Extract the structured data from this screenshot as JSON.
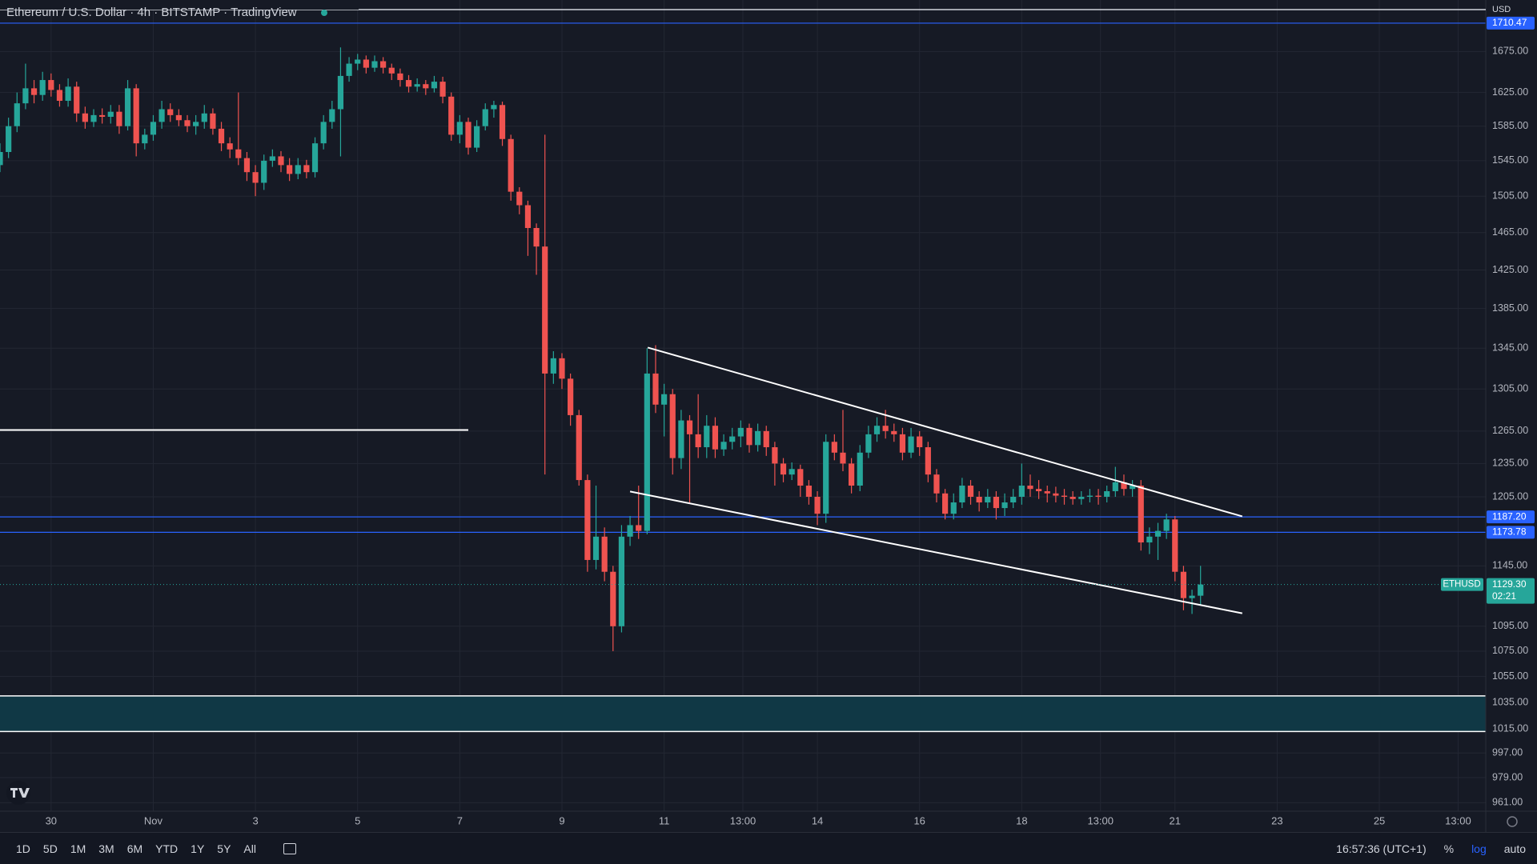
{
  "chart_data": {
    "type": "candlestick",
    "title": "Ethereum / U.S. Dollar · 4h · BITSTAMP · TradingView",
    "currency": "USD",
    "symbol": "ETHUSD",
    "last_price_label": "1129.30",
    "countdown": "02:21",
    "log": true,
    "grid": true,
    "up_color": "#26a69a",
    "down_color": "#ef5350",
    "line_color": "#2962ff",
    "xlim": [
      -24,
      674
    ],
    "ylim": [
      955,
      1740
    ],
    "xticks": [
      {
        "value": 0,
        "label": "30"
      },
      {
        "value": 48,
        "label": "Nov"
      },
      {
        "value": 96,
        "label": "3"
      },
      {
        "value": 144,
        "label": "5"
      },
      {
        "value": 192,
        "label": "7"
      },
      {
        "value": 240,
        "label": "9"
      },
      {
        "value": 288,
        "label": "11"
      },
      {
        "value": 325,
        "label": "13:00"
      },
      {
        "value": 360,
        "label": "14"
      },
      {
        "value": 408,
        "label": "16"
      },
      {
        "value": 456,
        "label": "18"
      },
      {
        "value": 493,
        "label": "13:00"
      },
      {
        "value": 528,
        "label": "21"
      },
      {
        "value": 576,
        "label": "23"
      },
      {
        "value": 624,
        "label": "25"
      },
      {
        "value": 661,
        "label": "13:00"
      }
    ],
    "yticks": [
      {
        "value": 1675,
        "label": "1675.00"
      },
      {
        "value": 1625,
        "label": "1625.00"
      },
      {
        "value": 1585,
        "label": "1585.00"
      },
      {
        "value": 1545,
        "label": "1545.00"
      },
      {
        "value": 1505,
        "label": "1505.00"
      },
      {
        "value": 1465,
        "label": "1465.00"
      },
      {
        "value": 1425,
        "label": "1425.00"
      },
      {
        "value": 1385,
        "label": "1385.00"
      },
      {
        "value": 1345,
        "label": "1345.00"
      },
      {
        "value": 1305,
        "label": "1305.00"
      },
      {
        "value": 1265,
        "label": "1265.00"
      },
      {
        "value": 1235,
        "label": "1235.00"
      },
      {
        "value": 1205,
        "label": "1205.00"
      },
      {
        "value": 1145,
        "label": "1145.00"
      },
      {
        "value": 1095,
        "label": "1095.00"
      },
      {
        "value": 1075,
        "label": "1075.00"
      },
      {
        "value": 1055,
        "label": "1055.00"
      },
      {
        "value": 1035,
        "label": "1035.00"
      },
      {
        "value": 1015,
        "label": "1015.00"
      },
      {
        "value": 997,
        "label": "997.00"
      },
      {
        "value": 979,
        "label": "979.00"
      },
      {
        "value": 961,
        "label": "961.00"
      }
    ],
    "price_lines": [
      {
        "value": 1710.47,
        "label": "1710.47"
      },
      {
        "value": 1187.2,
        "label": "1187.20"
      },
      {
        "value": 1173.78,
        "label": "1173.78"
      }
    ],
    "zone": [
      1013,
      1040
    ],
    "segments": [
      {
        "x": [
          -24,
          196
        ],
        "y": [
          1266,
          1266
        ]
      },
      {
        "x": [
          280.3,
          559.6
        ],
        "y": [
          1345.6,
          1187.7
        ]
      },
      {
        "x": [
          272,
          559.6
        ],
        "y": [
          1209.7,
          1105.5
        ]
      }
    ],
    "x": [
      -24,
      -20,
      -16,
      -12,
      -8,
      -4,
      0,
      4,
      8,
      12,
      16,
      20,
      24,
      28,
      32,
      36,
      40,
      44,
      48,
      52,
      56,
      60,
      64,
      68,
      72,
      76,
      80,
      84,
      88,
      92,
      96,
      100,
      104,
      108,
      112,
      116,
      120,
      124,
      128,
      132,
      136,
      140,
      144,
      148,
      152,
      156,
      160,
      164,
      168,
      172,
      176,
      180,
      184,
      188,
      192,
      196,
      200,
      204,
      208,
      212,
      216,
      220,
      224,
      228,
      232,
      236,
      240,
      244,
      248,
      252,
      256,
      260,
      264,
      268,
      272,
      276,
      280,
      284,
      288,
      292,
      296,
      300,
      304,
      308,
      312,
      316,
      320,
      324,
      328,
      332,
      336,
      340,
      344,
      348,
      352,
      356,
      360,
      364,
      368,
      372,
      376,
      380,
      384,
      388,
      392,
      396,
      400,
      404,
      408,
      412,
      416,
      420,
      424,
      428,
      432,
      436,
      440,
      444,
      448,
      452,
      456,
      460,
      464,
      468,
      472,
      476,
      480,
      484,
      488,
      492,
      496,
      500,
      504,
      508,
      512,
      516,
      520,
      524,
      528,
      532,
      536,
      540
    ],
    "open": [
      1540,
      1555,
      1585,
      1612,
      1630,
      1622,
      1640,
      1628,
      1615,
      1632,
      1600,
      1590,
      1598,
      1596,
      1602,
      1585,
      1630,
      1565,
      1575,
      1590,
      1605,
      1598,
      1592,
      1585,
      1590,
      1600,
      1582,
      1565,
      1558,
      1548,
      1532,
      1520,
      1545,
      1550,
      1540,
      1530,
      1540,
      1532,
      1565,
      1590,
      1605,
      1645,
      1660,
      1665,
      1655,
      1663,
      1655,
      1648,
      1640,
      1632,
      1635,
      1630,
      1638,
      1620,
      1575,
      1590,
      1560,
      1585,
      1605,
      1610,
      1570,
      1510,
      1495,
      1470,
      1450,
      1320,
      1335,
      1315,
      1280,
      1220,
      1150,
      1170,
      1140,
      1095,
      1170,
      1180,
      1175,
      1320,
      1290,
      1300,
      1240,
      1275,
      1262,
      1250,
      1270,
      1248,
      1255,
      1260,
      1268,
      1252,
      1265,
      1250,
      1235,
      1225,
      1230,
      1215,
      1205,
      1190,
      1255,
      1245,
      1235,
      1215,
      1245,
      1262,
      1270,
      1265,
      1262,
      1245,
      1260,
      1250,
      1225,
      1208,
      1190,
      1200,
      1215,
      1205,
      1200,
      1205,
      1195,
      1200,
      1205,
      1215,
      1212,
      1210,
      1208,
      1206,
      1205,
      1203,
      1205,
      1206,
      1205,
      1210,
      1218,
      1212,
      1215,
      1165,
      1170,
      1175,
      1185,
      1140,
      1118,
      1120
    ],
    "high": [
      1565,
      1595,
      1625,
      1660,
      1640,
      1650,
      1648,
      1635,
      1642,
      1638,
      1608,
      1605,
      1606,
      1610,
      1610,
      1640,
      1635,
      1582,
      1598,
      1615,
      1612,
      1605,
      1598,
      1598,
      1610,
      1606,
      1590,
      1572,
      1625,
      1555,
      1540,
      1552,
      1558,
      1556,
      1548,
      1548,
      1546,
      1572,
      1598,
      1615,
      1680,
      1668,
      1672,
      1670,
      1670,
      1668,
      1660,
      1654,
      1646,
      1642,
      1640,
      1645,
      1644,
      1625,
      1598,
      1595,
      1592,
      1612,
      1615,
      1614,
      1575,
      1515,
      1500,
      1475,
      1575,
      1342,
      1340,
      1320,
      1285,
      1225,
      1215,
      1178,
      1145,
      1180,
      1188,
      1215,
      1345,
      1348,
      1310,
      1305,
      1285,
      1280,
      1300,
      1280,
      1278,
      1262,
      1268,
      1275,
      1272,
      1272,
      1270,
      1255,
      1240,
      1236,
      1234,
      1220,
      1210,
      1262,
      1262,
      1285,
      1240,
      1252,
      1270,
      1278,
      1285,
      1272,
      1268,
      1268,
      1265,
      1255,
      1230,
      1212,
      1208,
      1222,
      1220,
      1210,
      1212,
      1210,
      1208,
      1212,
      1235,
      1225,
      1220,
      1215,
      1214,
      1212,
      1210,
      1210,
      1212,
      1212,
      1215,
      1232,
      1225,
      1220,
      1220,
      1178,
      1182,
      1190,
      1188,
      1145,
      1125,
      1145
    ],
    "low": [
      1532,
      1548,
      1578,
      1605,
      1612,
      1615,
      1620,
      1608,
      1608,
      1590,
      1582,
      1584,
      1588,
      1588,
      1576,
      1580,
      1550,
      1558,
      1568,
      1582,
      1590,
      1585,
      1578,
      1575,
      1582,
      1575,
      1556,
      1548,
      1540,
      1522,
      1505,
      1512,
      1538,
      1532,
      1522,
      1524,
      1525,
      1526,
      1558,
      1582,
      1550,
      1638,
      1652,
      1648,
      1650,
      1648,
      1640,
      1632,
      1625,
      1626,
      1622,
      1625,
      1612,
      1568,
      1565,
      1552,
      1555,
      1580,
      1595,
      1562,
      1500,
      1485,
      1440,
      1420,
      1225,
      1310,
      1305,
      1270,
      1215,
      1140,
      1142,
      1132,
      1075,
      1090,
      1162,
      1168,
      1172,
      1282,
      1260,
      1225,
      1230,
      1200,
      1240,
      1240,
      1240,
      1242,
      1248,
      1250,
      1245,
      1246,
      1242,
      1215,
      1218,
      1220,
      1205,
      1198,
      1180,
      1182,
      1238,
      1228,
      1208,
      1210,
      1240,
      1255,
      1258,
      1255,
      1238,
      1240,
      1242,
      1218,
      1200,
      1185,
      1185,
      1195,
      1198,
      1192,
      1195,
      1185,
      1188,
      1195,
      1198,
      1205,
      1203,
      1200,
      1200,
      1198,
      1198,
      1198,
      1200,
      1198,
      1200,
      1205,
      1206,
      1205,
      1158,
      1155,
      1150,
      1168,
      1132,
      1108,
      1105,
      1112
    ],
    "close": [
      1555,
      1585,
      1612,
      1630,
      1622,
      1640,
      1628,
      1615,
      1632,
      1600,
      1590,
      1598,
      1596,
      1602,
      1585,
      1630,
      1565,
      1575,
      1590,
      1605,
      1598,
      1592,
      1585,
      1590,
      1600,
      1582,
      1565,
      1558,
      1548,
      1532,
      1520,
      1545,
      1550,
      1540,
      1530,
      1540,
      1532,
      1565,
      1590,
      1605,
      1645,
      1660,
      1665,
      1655,
      1663,
      1655,
      1648,
      1640,
      1632,
      1635,
      1630,
      1638,
      1620,
      1575,
      1590,
      1560,
      1585,
      1605,
      1610,
      1570,
      1510,
      1495,
      1470,
      1450,
      1320,
      1335,
      1315,
      1280,
      1220,
      1150,
      1170,
      1140,
      1095,
      1170,
      1180,
      1175,
      1320,
      1290,
      1300,
      1240,
      1275,
      1262,
      1250,
      1270,
      1248,
      1255,
      1260,
      1268,
      1252,
      1265,
      1250,
      1235,
      1225,
      1230,
      1215,
      1205,
      1190,
      1255,
      1245,
      1235,
      1215,
      1245,
      1262,
      1270,
      1265,
      1262,
      1245,
      1260,
      1250,
      1225,
      1208,
      1190,
      1200,
      1215,
      1205,
      1200,
      1205,
      1195,
      1200,
      1205,
      1215,
      1212,
      1210,
      1208,
      1206,
      1205,
      1203,
      1205,
      1206,
      1205,
      1210,
      1218,
      1212,
      1215,
      1165,
      1170,
      1175,
      1185,
      1140,
      1118,
      1120,
      1129.3
    ]
  },
  "ui": {
    "timeframes": [
      "1D",
      "5D",
      "1M",
      "3M",
      "6M",
      "YTD",
      "1Y",
      "5Y",
      "All"
    ],
    "clock": "16:57:36 (UTC+1)",
    "options": [
      "%",
      "log",
      "auto"
    ]
  }
}
